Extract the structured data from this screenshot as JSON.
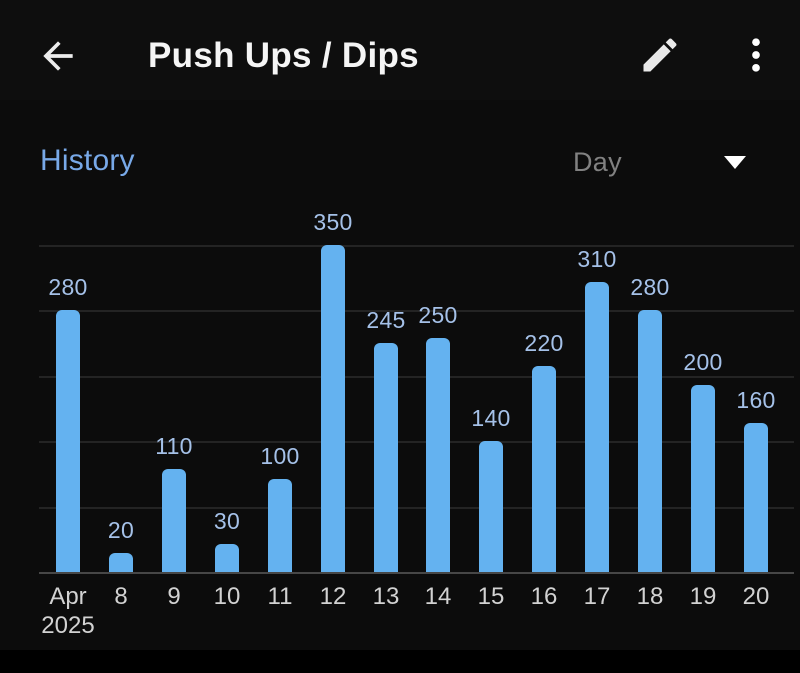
{
  "header": {
    "title": "Push Ups / Dips",
    "icons": {
      "back": "arrow-left",
      "edit": "pencil",
      "menu": "more-vert"
    }
  },
  "history": {
    "label": "History",
    "period_selector": {
      "value": "Day",
      "icon": "arrow-drop-down"
    }
  },
  "chart_data": {
    "type": "bar",
    "title": "History",
    "categories": [
      "Apr\n2025",
      "8",
      "9",
      "10",
      "11",
      "12",
      "13",
      "14",
      "15",
      "16",
      "17",
      "18",
      "19",
      "20"
    ],
    "values": [
      280,
      20,
      110,
      30,
      100,
      350,
      245,
      250,
      140,
      220,
      310,
      280,
      200,
      160
    ],
    "xlabel": "",
    "ylabel": "",
    "ylim": [
      0,
      350
    ],
    "gridline_step": 70,
    "grid": true,
    "legend": false,
    "value_labels": true,
    "bar_color": "#64b2f0",
    "value_label_color": "#a5c1e8",
    "axis_label_color": "#d2d2d2",
    "gridline_color": "#242424",
    "baseline_color": "#474747"
  },
  "colors": {
    "background": "#0c0c0c",
    "accent_blue": "#64b2f0",
    "history_label": "#78a9e8",
    "period_text": "#818181",
    "bottom_bar": "#000000"
  }
}
